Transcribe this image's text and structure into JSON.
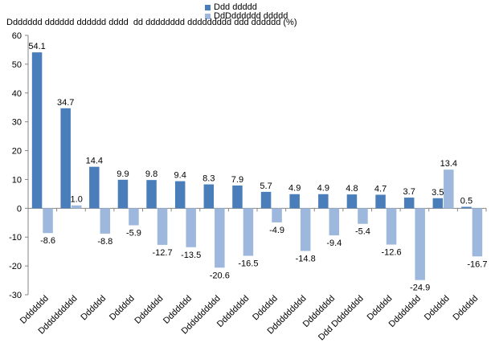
{
  "chart_data": {
    "type": "bar",
    "title": "Ddddddd dddddd dddddd dddd  dd dddddddd ddddddddd ddd dddddd (%)",
    "categories": [
      "Ddddddd",
      "Dddddddddd",
      "Dddddd",
      "Dddddd",
      "Ddddddd",
      "Ddddddd",
      "Dddddddddd",
      "Dddddddd",
      "Dddddd",
      "Dddddddddd",
      "Dddddddd",
      "Ddd Dddddddd",
      "Dddddd",
      "Dddddddd",
      "Dddddd",
      "Dddddd"
    ],
    "series": [
      {
        "name": "Ddd ddddd",
        "color": "#4a7ebb",
        "values": [
          54.1,
          34.7,
          14.4,
          9.9,
          9.8,
          9.4,
          8.3,
          7.9,
          5.7,
          4.9,
          4.9,
          4.8,
          4.7,
          3.7,
          3.5,
          0.5
        ]
      },
      {
        "name": "DdDdddddd ddddd",
        "color": "#9db8dc",
        "values": [
          -8.6,
          1.0,
          -8.8,
          -5.9,
          -12.7,
          -13.5,
          -20.6,
          -16.5,
          -4.9,
          -14.8,
          -9.4,
          -5.4,
          -12.6,
          -24.9,
          13.4,
          -16.7
        ]
      }
    ],
    "value_labels": {
      "series1": [
        "54.1",
        "34.7",
        "14.4",
        "9.9",
        "9.8",
        "9.4",
        "8.3",
        "7.9",
        "5.7",
        "4.9",
        "4.9",
        "4.8",
        "4.7",
        "3.7",
        "3.5",
        "0.5"
      ],
      "series2": [
        "-8.6",
        "1.0",
        "-8.8",
        "-5.9",
        "-12.7",
        "-13.5",
        "-20.6",
        "-16.5",
        "-4.9",
        "-14.8",
        "-9.4",
        "-5.4",
        "-12.6",
        "-24.9",
        "13.4",
        "-16.7"
      ]
    },
    "yticks": [
      "-30",
      "-20",
      "-10",
      "0",
      "10",
      "20",
      "30",
      "40",
      "50",
      "60"
    ],
    "ylim": [
      -30,
      60
    ],
    "ytick_step": 10,
    "legend_position": "top-center",
    "grid": false
  }
}
